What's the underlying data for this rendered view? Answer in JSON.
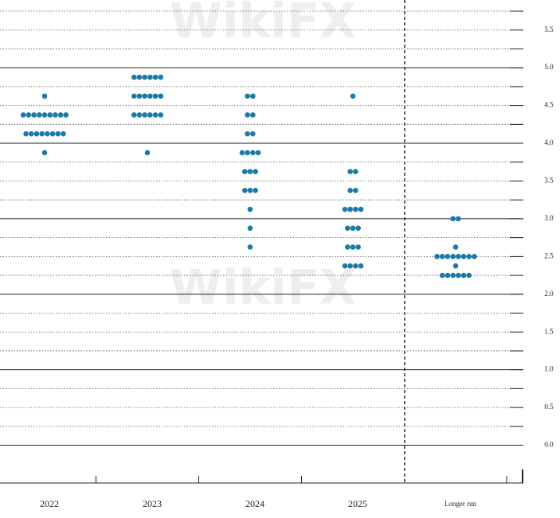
{
  "chart_data": {
    "type": "dot",
    "watermark": "WikiFX",
    "categories": [
      "2022",
      "2023",
      "2024",
      "2025",
      "Longer run"
    ],
    "dots": [
      [
        4.625,
        4.375,
        4.375,
        4.375,
        4.375,
        4.375,
        4.375,
        4.375,
        4.375,
        4.375,
        4.125,
        4.125,
        4.125,
        4.125,
        4.125,
        4.125,
        4.125,
        4.125,
        3.875
      ],
      [
        4.875,
        4.875,
        4.875,
        4.875,
        4.875,
        4.875,
        4.625,
        4.625,
        4.625,
        4.625,
        4.625,
        4.625,
        4.375,
        4.375,
        4.375,
        4.375,
        4.375,
        4.375,
        3.875
      ],
      [
        4.625,
        4.625,
        4.375,
        4.375,
        4.125,
        4.125,
        3.875,
        3.875,
        3.875,
        3.875,
        3.625,
        3.625,
        3.625,
        3.375,
        3.375,
        3.375,
        3.125,
        2.875,
        2.625
      ],
      [
        4.625,
        3.625,
        3.625,
        3.375,
        3.375,
        3.125,
        3.125,
        3.125,
        3.125,
        2.875,
        2.875,
        2.875,
        2.625,
        2.625,
        2.625,
        2.375,
        2.375,
        2.375,
        2.375
      ],
      [
        3.0,
        3.0,
        2.625,
        2.5,
        2.5,
        2.5,
        2.5,
        2.5,
        2.5,
        2.5,
        2.5,
        2.375,
        2.25,
        2.25,
        2.25,
        2.25,
        2.25,
        2.25
      ]
    ],
    "color": "#1a7aa8",
    "ylim": [
      -0.5,
      5.75
    ],
    "yticks": [
      {
        "value": 0,
        "label": "0.0"
      },
      0.5,
      {
        "value": 1,
        "label": "1.0"
      },
      1.5,
      {
        "value": 2,
        "label": "2.0"
      },
      2.5,
      {
        "value": 3,
        "label": "3.0"
      },
      3.5,
      {
        "value": 4,
        "label": "4.0"
      },
      4.5,
      {
        "value": 5,
        "label": "5.0"
      },
      5.5
    ],
    "ygrid": [
      0,
      0.25,
      0.5,
      0.75,
      1,
      1.25,
      1.5,
      1.75,
      2,
      2.25,
      2.5,
      2.75,
      3,
      3.25,
      3.5,
      3.75,
      4,
      4.25,
      4.5,
      4.75,
      5,
      5.25,
      5.5,
      5.75
    ]
  }
}
